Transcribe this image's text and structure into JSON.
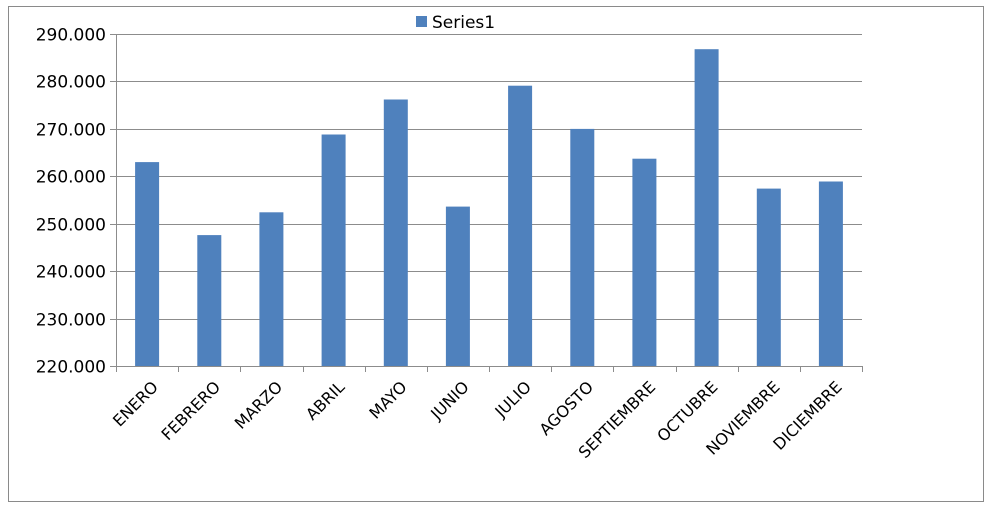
{
  "chart_data": {
    "type": "bar",
    "title": "",
    "xlabel": "",
    "ylabel": "",
    "categories": [
      "ENERO",
      "FEBRERO",
      "MARZO",
      "ABRIL",
      "MAYO",
      "JUNIO",
      "JULIO",
      "AGOSTO",
      "SEPTIEMBRE",
      "OCTUBRE",
      "NOVIEMBRE",
      "DICIEMBRE"
    ],
    "series": [
      {
        "name": "Series1",
        "color": "#4F81BD",
        "values": [
          263000,
          247600,
          252400,
          268800,
          276200,
          253600,
          279100,
          270000,
          263700,
          286800,
          257400,
          258900
        ]
      }
    ],
    "ylim": [
      220000,
      290000
    ],
    "y_ticks": [
      220000,
      230000,
      240000,
      250000,
      260000,
      270000,
      280000,
      290000
    ],
    "y_tick_labels": [
      "220.000",
      "230.000",
      "240.000",
      "250.000",
      "260.000",
      "270.000",
      "280.000",
      "290.000"
    ],
    "grid": true,
    "legend_position": "top"
  }
}
